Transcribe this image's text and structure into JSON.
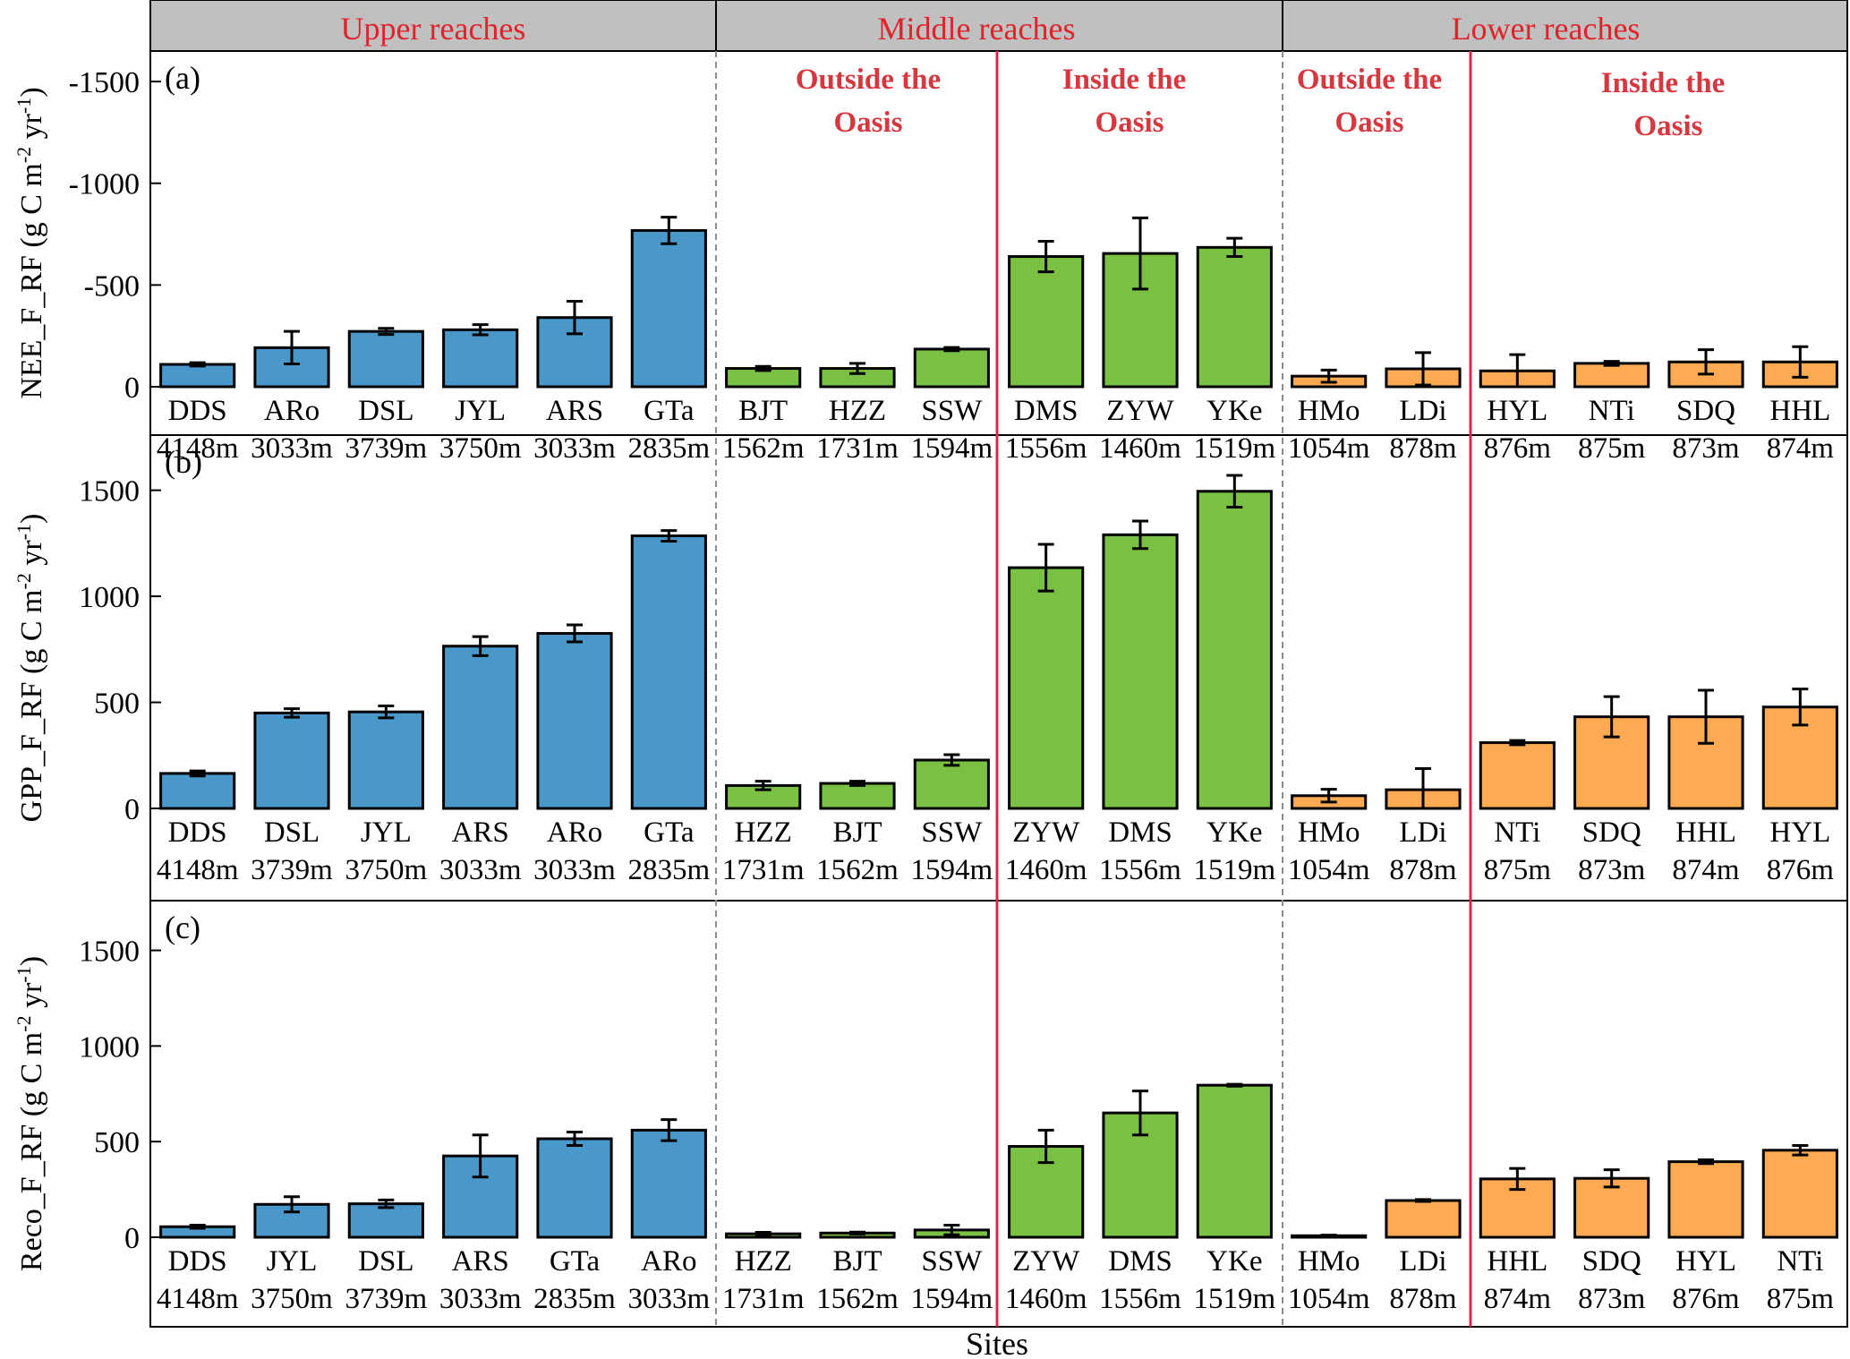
{
  "colors": {
    "upper": "#4A98C9",
    "middle": "#7AC143",
    "lower": "#FDAA53",
    "region_text": "#E0232B",
    "oasis_text": "#D7373F",
    "divider_red": "#E0234A",
    "header_bg": "#C0C0C0"
  },
  "regions": {
    "upper": "Upper reaches",
    "middle": "Middle reaches",
    "lower": "Lower reaches"
  },
  "oasis": {
    "outside_line1": "Outside the",
    "inside_line1": "Inside the",
    "line2": "Oasis"
  },
  "xlabel": "Sites",
  "chart_data": [
    {
      "type": "bar",
      "panel": "(a)",
      "ylabel": "NEE_F_RF (g C m-2 yr-1)",
      "ylabel_parts": [
        "NEE_F_RF (g C m",
        "-2",
        " yr",
        "-1",
        ")"
      ],
      "inverted_axis": true,
      "ylim": [
        0,
        -1650
      ],
      "yticks": [
        0,
        -500,
        -1000,
        -1500
      ],
      "ytick_labels": [
        "0",
        "-500",
        "-1000",
        "-1500"
      ],
      "sites": [
        "DDS",
        "ARo",
        "DSL",
        "JYL",
        "ARS",
        "GTa",
        "BJT",
        "HZZ",
        "SSW",
        "DMS",
        "ZYW",
        "YKe",
        "HMo",
        "LDi",
        "HYL",
        "NTi",
        "SDQ",
        "HHL"
      ],
      "elevations": [
        "4148m",
        "3033m",
        "3739m",
        "3750m",
        "3033m",
        "2835m",
        "1562m",
        "1731m",
        "1594m",
        "1556m",
        "1460m",
        "1519m",
        "1054m",
        "878m",
        "876m",
        "875m",
        "873m",
        "874m"
      ],
      "values": [
        -110,
        -192,
        -272,
        -280,
        -340,
        -768,
        -90,
        -90,
        -185,
        -640,
        -655,
        -685,
        -52,
        -88,
        -78,
        -115,
        -122,
        -122
      ],
      "errors": [
        8,
        80,
        15,
        25,
        80,
        65,
        10,
        25,
        8,
        75,
        175,
        45,
        30,
        80,
        80,
        10,
        60,
        75
      ]
    },
    {
      "type": "bar",
      "panel": "(b)",
      "ylabel": "GPP_F_RF (g C m-2 yr-1)",
      "ylabel_parts": [
        "GPP_F_RF (g C m",
        "-2",
        " yr",
        "-1",
        ")"
      ],
      "ylim": [
        0,
        1760
      ],
      "yticks": [
        0,
        500,
        1000,
        1500
      ],
      "ytick_labels": [
        "0",
        "500",
        "1000",
        "1500"
      ],
      "sites": [
        "DDS",
        "DSL",
        "JYL",
        "ARS",
        "ARo",
        "GTa",
        "HZZ",
        "BJT",
        "SSW",
        "ZYW",
        "DMS",
        "YKe",
        "HMo",
        "LDi",
        "NTi",
        "SDQ",
        "HHL",
        "HYL"
      ],
      "elevations": [
        "4148m",
        "3739m",
        "3750m",
        "3033m",
        "3033m",
        "2835m",
        "1731m",
        "1562m",
        "1594m",
        "1460m",
        "1556m",
        "1519m",
        "1054m",
        "878m",
        "875m",
        "873m",
        "874m",
        "876m"
      ],
      "values": [
        165,
        450,
        455,
        765,
        825,
        1285,
        108,
        118,
        228,
        1135,
        1290,
        1495,
        60,
        88,
        310,
        432,
        432,
        478
      ],
      "errors": [
        12,
        20,
        28,
        45,
        40,
        25,
        20,
        10,
        25,
        110,
        65,
        75,
        30,
        100,
        10,
        95,
        125,
        85
      ]
    },
    {
      "type": "bar",
      "panel": "(c)",
      "ylabel": "Reco_F_RF (g C m-2 yr-1)",
      "ylabel_parts": [
        "Reco_F_RF (g C m",
        "-2",
        " yr",
        "-1",
        ")"
      ],
      "ylim": [
        0,
        1760
      ],
      "yticks": [
        0,
        500,
        1000,
        1500
      ],
      "ytick_labels": [
        "0",
        "500",
        "1000",
        "1500"
      ],
      "sites": [
        "DDS",
        "JYL",
        "DSL",
        "ARS",
        "GTa",
        "ARo",
        "HZZ",
        "BJT",
        "SSW",
        "ZYW",
        "DMS",
        "YKe",
        "HMo",
        "LDi",
        "HHL",
        "SDQ",
        "HYL",
        "NTi"
      ],
      "elevations": [
        "4148m",
        "3750m",
        "3739m",
        "3033m",
        "2835m",
        "3033m",
        "1731m",
        "1562m",
        "1594m",
        "1460m",
        "1556m",
        "1519m",
        "1054m",
        "878m",
        "874m",
        "873m",
        "876m",
        "875m"
      ],
      "values": [
        55,
        172,
        175,
        425,
        515,
        560,
        18,
        22,
        38,
        475,
        650,
        795,
        8,
        192,
        305,
        308,
        395,
        455
      ],
      "errors": [
        8,
        40,
        20,
        110,
        35,
        55,
        8,
        5,
        25,
        85,
        115,
        5,
        3,
        5,
        55,
        45,
        10,
        25
      ]
    }
  ]
}
